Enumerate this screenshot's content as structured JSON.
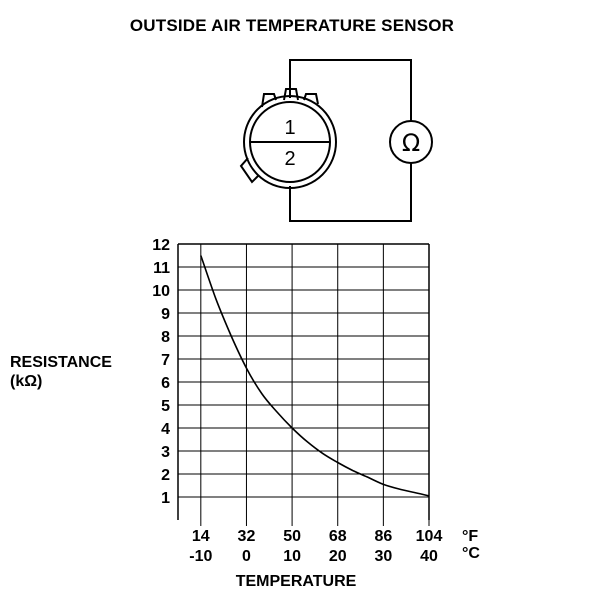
{
  "title": "OUTSIDE AIR TEMPERATURE SENSOR",
  "diagram": {
    "terminal_1": "1",
    "terminal_2": "2",
    "meter_symbol": "Ω"
  },
  "chart_data": {
    "type": "line",
    "ylabel_line1": "RESISTANCE",
    "ylabel_line2": "(kΩ)",
    "xlabel": "TEMPERATURE",
    "ylim": [
      0,
      12
    ],
    "xlim_f": [
      5,
      104
    ],
    "y_ticks": [
      1,
      2,
      3,
      4,
      5,
      6,
      7,
      8,
      9,
      10,
      11,
      12
    ],
    "x_ticks_f": [
      14,
      32,
      50,
      68,
      86,
      104
    ],
    "x_ticks_c": [
      -10,
      0,
      10,
      20,
      30,
      40
    ],
    "unit_f": "°F",
    "unit_c": "°C",
    "grid": true,
    "series": [
      {
        "x_f": [
          14,
          20,
          26,
          32,
          38,
          44,
          50,
          56,
          62,
          68,
          74,
          80,
          86,
          92,
          98,
          104
        ],
        "y": [
          11.5,
          9.6,
          8.0,
          6.6,
          5.5,
          4.7,
          4.0,
          3.4,
          2.9,
          2.5,
          2.15,
          1.85,
          1.55,
          1.35,
          1.2,
          1.05
        ]
      }
    ]
  }
}
